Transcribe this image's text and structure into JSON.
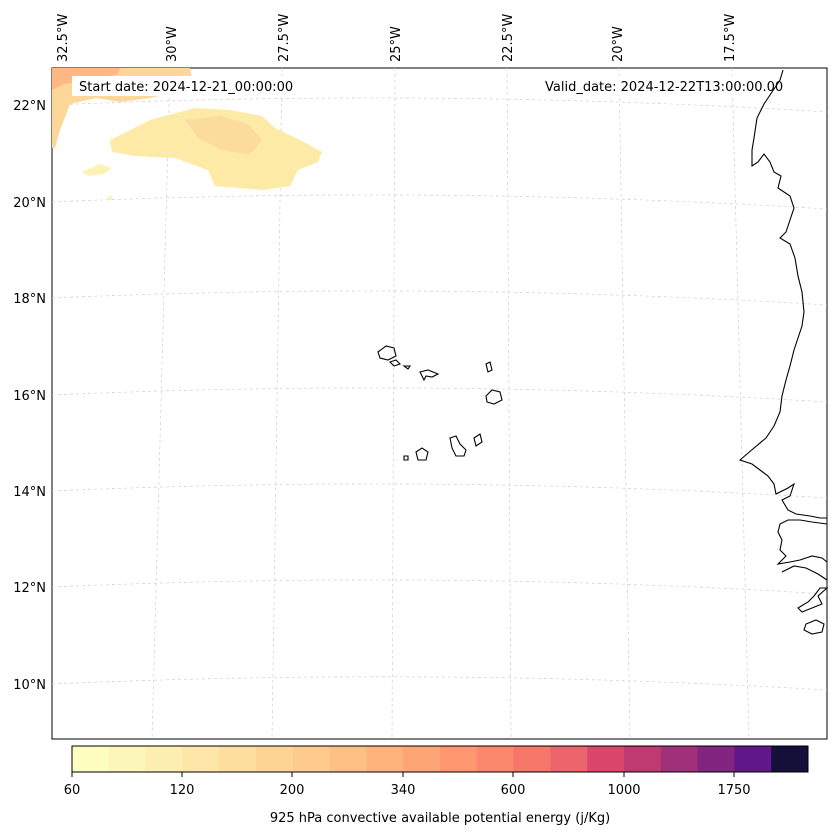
{
  "map": {
    "start_label": "Start date: 2024-12-21_00:00:00",
    "valid_label": "Valid_date: 2024-12-22T13:00:00.00",
    "lon_labels": [
      "32.5°W",
      "30°W",
      "27.5°W",
      "25°W",
      "22.5°W",
      "20°W",
      "17.5°W"
    ],
    "lat_labels": [
      "22°N",
      "20°N",
      "18°N",
      "16°N",
      "14°N",
      "12°N",
      "10°N"
    ],
    "gridlines": true,
    "coastline_color": "#000000"
  },
  "colorbar": {
    "title": "925 hPa convective available potential energy (j/Kg)",
    "tick_labels": [
      "60",
      "120",
      "200",
      "340",
      "600",
      "1000",
      "1750"
    ],
    "colors": [
      "#fcfdbf",
      "#fcf6b8",
      "#fcefb1",
      "#fde6a8",
      "#fdde9e",
      "#fed495",
      "#feca8d",
      "#febf84",
      "#feb27c",
      "#fea576",
      "#fe9670",
      "#fb876c",
      "#f6766a",
      "#ec656c",
      "#d9476d",
      "#be3a71",
      "#a1307a",
      "#822581",
      "#5f1789",
      "#14103a"
    ]
  }
}
